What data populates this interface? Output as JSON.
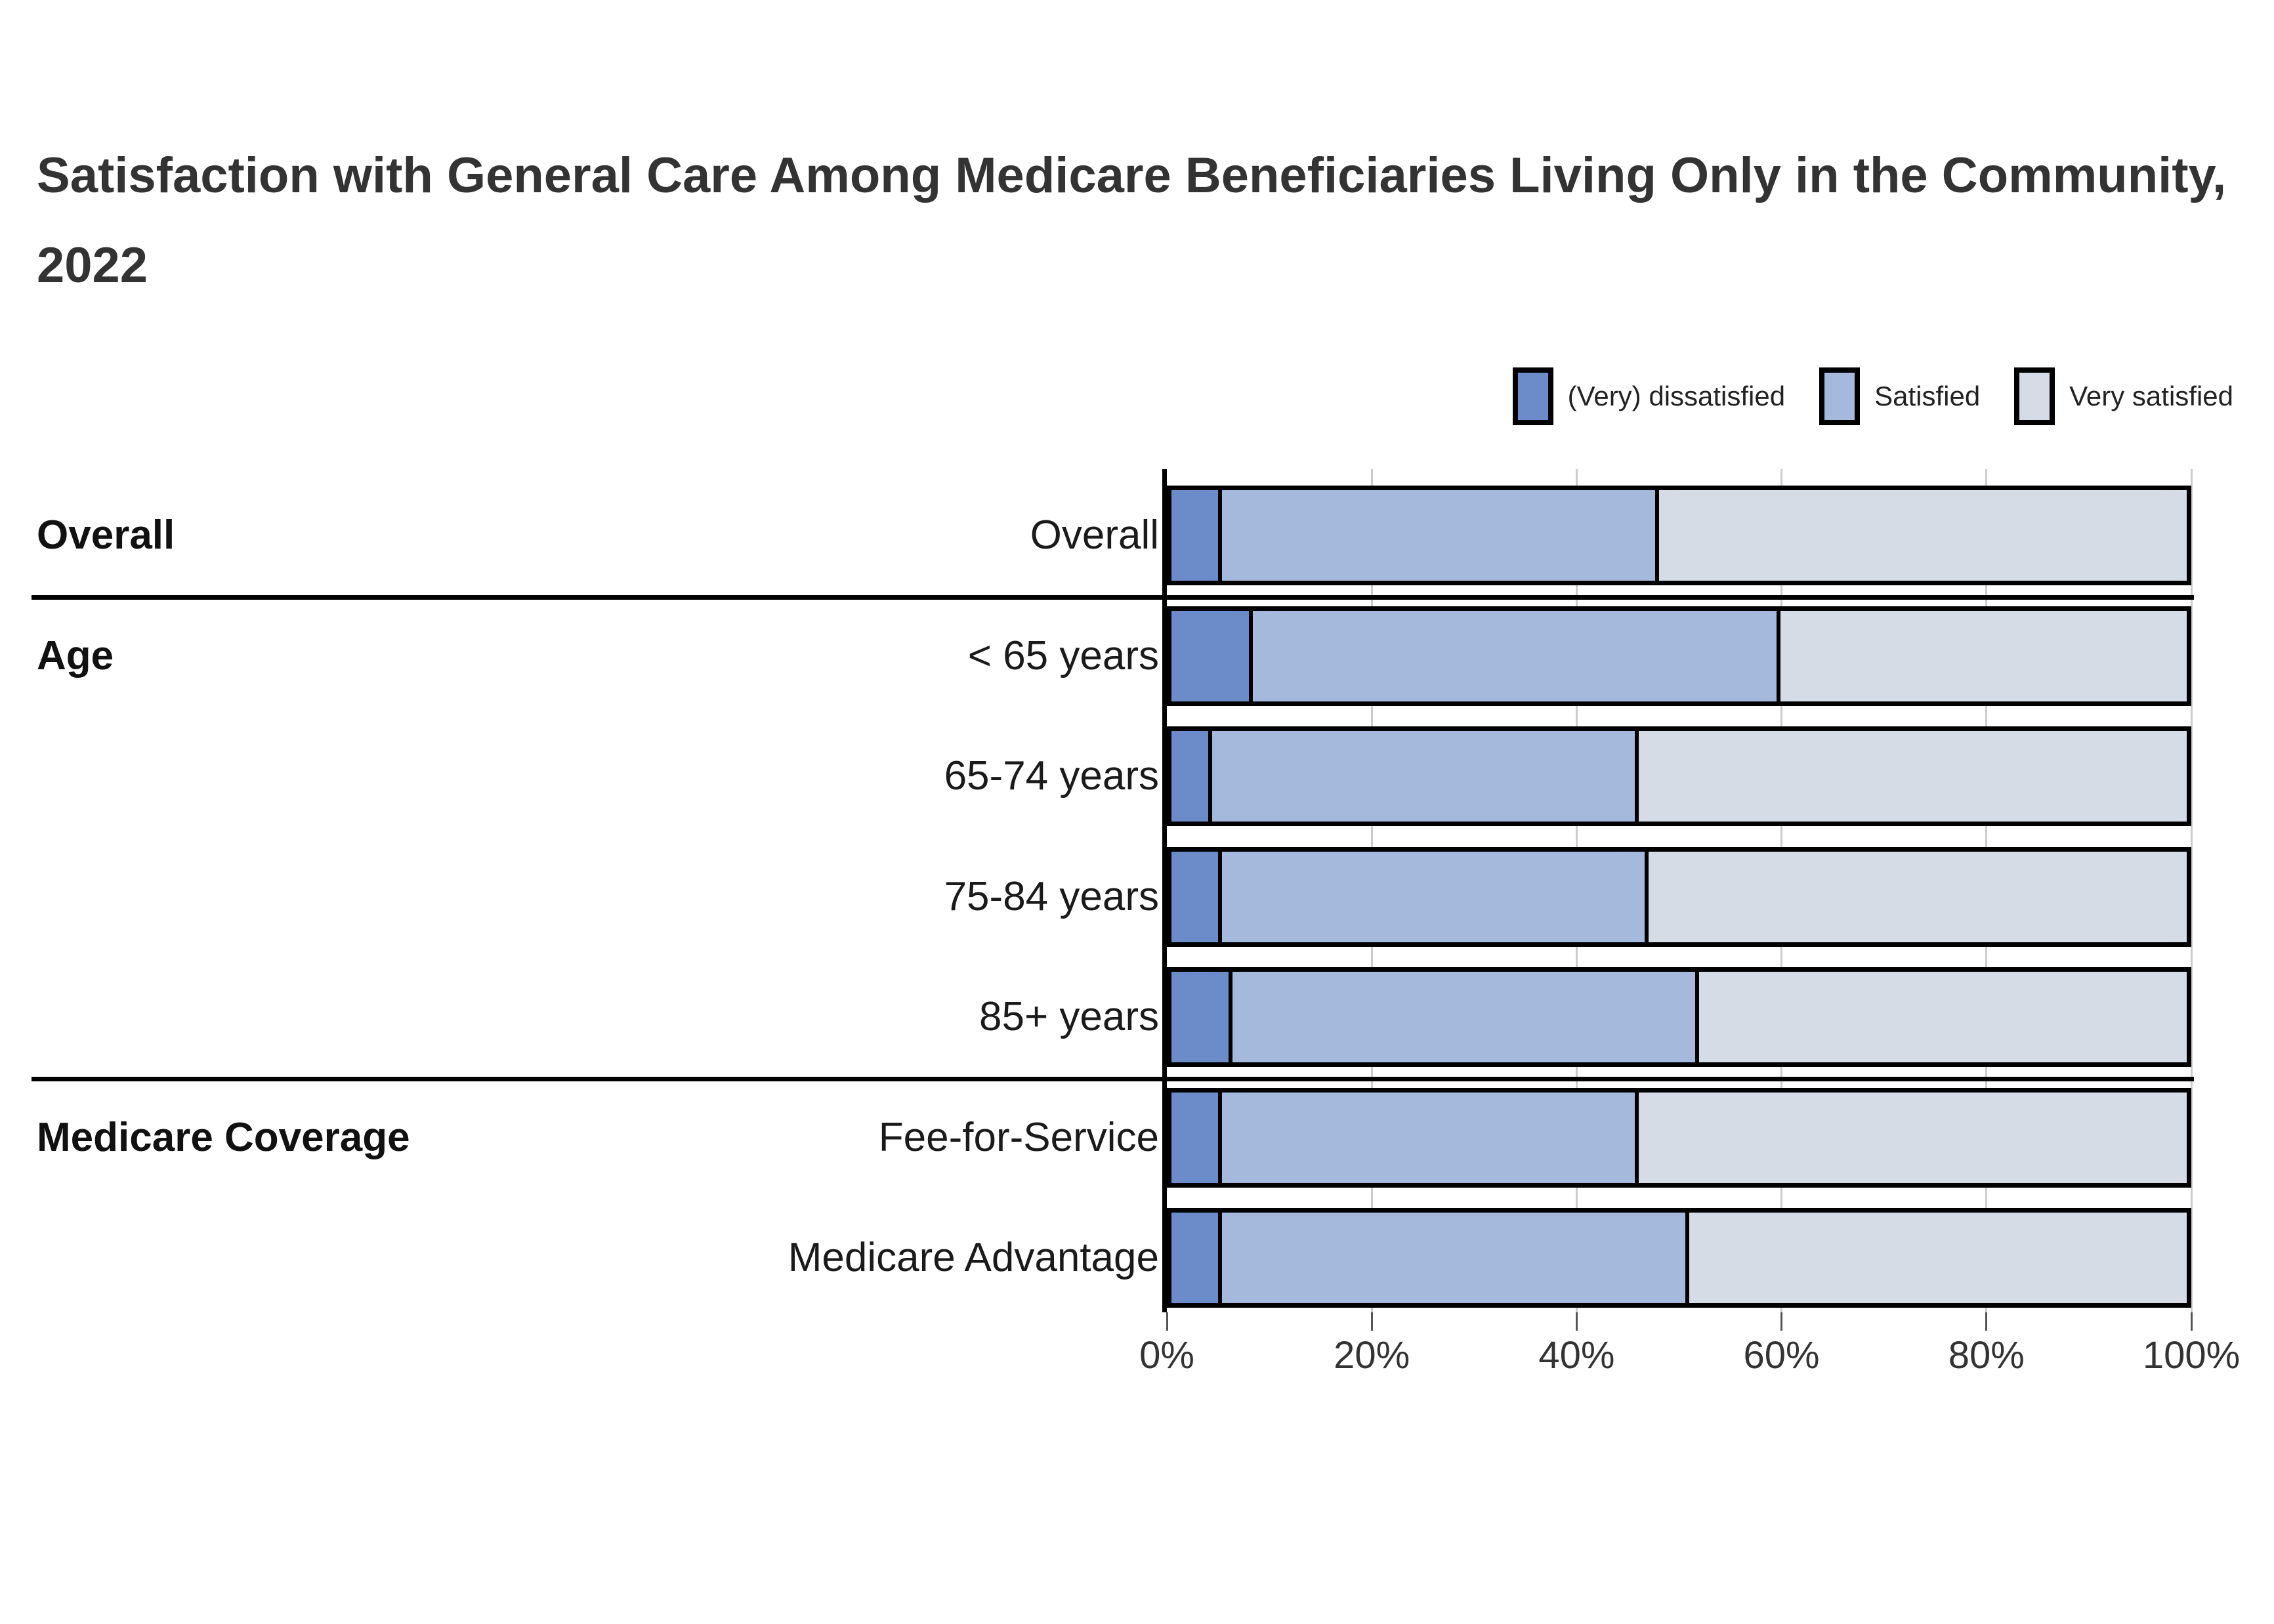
{
  "title": "Satisfaction with General Care Among Medicare Beneficiaries Living Only in the Community, 2022",
  "legend": {
    "items": [
      {
        "label": "(Very) dissatisfied",
        "color": "#6b8cc9"
      },
      {
        "label": "Satisfied",
        "color": "#a4b9dc"
      },
      {
        "label": "Very satisfied",
        "color": "#d5dce6"
      }
    ]
  },
  "chart_data": {
    "type": "bar",
    "orientation": "horizontal",
    "stacked": true,
    "title": "Satisfaction with General Care Among Medicare Beneficiaries Living Only in the Community, 2022",
    "categories": [
      "Overall",
      "< 65 years",
      "65-74 years",
      "75-84 years",
      "85+ years",
      "Fee-for-Service",
      "Medicare Advantage"
    ],
    "groups": [
      {
        "label": "Overall",
        "first_row": 0,
        "last_row": 0
      },
      {
        "label": "Age",
        "first_row": 1,
        "last_row": 4
      },
      {
        "label": "Medicare Coverage",
        "first_row": 5,
        "last_row": 6
      }
    ],
    "series": [
      {
        "name": "(Very) dissatisfied",
        "color": "#6b8cc9",
        "values": [
          5,
          8,
          4,
          5,
          6,
          5,
          5
        ]
      },
      {
        "name": "Satisfied",
        "color": "#a4b9dc",
        "values": [
          43,
          52,
          42,
          42,
          46,
          41,
          46
        ]
      },
      {
        "name": "Very satisfied",
        "color": "#d5dce6",
        "values": [
          52,
          40,
          54,
          53,
          48,
          54,
          49
        ]
      }
    ],
    "x_ticks": [
      "0%",
      "20%",
      "40%",
      "60%",
      "80%",
      "100%"
    ],
    "xlim": [
      0,
      100
    ],
    "unit": "%",
    "grid": "vertical-20pct",
    "legend_position": "top-right",
    "colors": {
      "grid": "#cccccc",
      "bar_border": "#000000",
      "text": "#333333"
    }
  }
}
